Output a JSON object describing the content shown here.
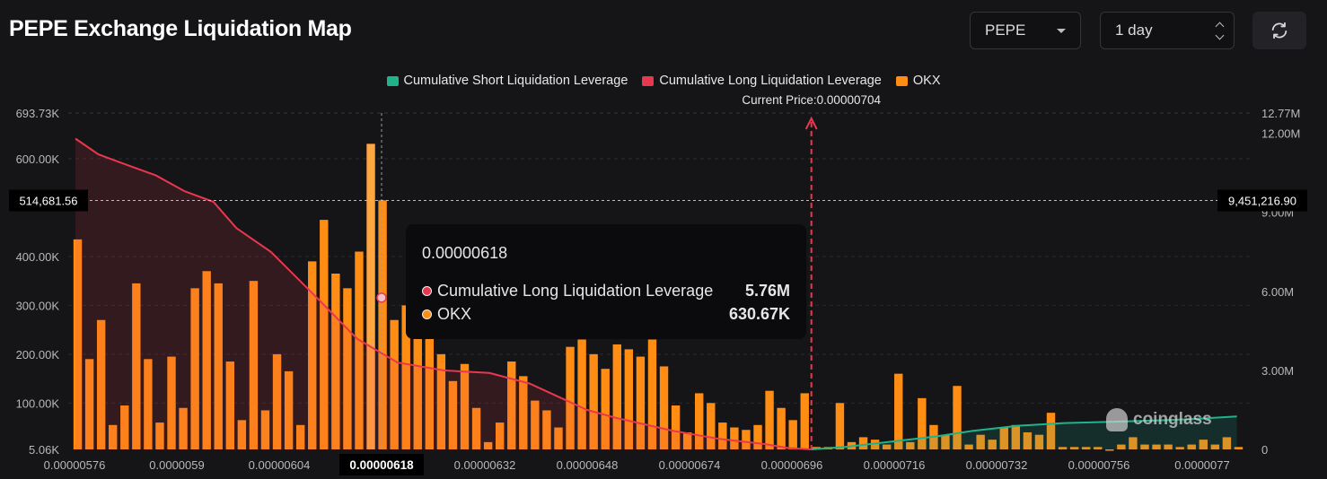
{
  "header": {
    "title": "PEPE Exchange Liquidation Map",
    "coin_select": "PEPE",
    "range_select": "1 day"
  },
  "legend": [
    {
      "label": "Cumulative Short Liquidation Leverage",
      "color": "#1fb38c"
    },
    {
      "label": "Cumulative Long Liquidation Leverage",
      "color": "#e8384f"
    },
    {
      "label": "OKX",
      "color": "#ff8c13"
    }
  ],
  "current_price_label": "Current Price:0.00000704",
  "crosshair": {
    "left_value": "514,681.56",
    "right_value": "9,451,216.90",
    "x_label": "0.00000618"
  },
  "tooltip": {
    "title": "0.00000618",
    "rows": [
      {
        "name": "Cumulative Long Liquidation Leverage",
        "value": "5.76M",
        "color": "#e8384f"
      },
      {
        "name": "OKX",
        "value": "630.67K",
        "color": "#ff8c13"
      }
    ]
  },
  "watermark": "coinglass",
  "chart_data": {
    "type": "bar",
    "x_tick_labels": [
      "0.00000576",
      "0.0000059",
      "0.00000604",
      "0.00000618",
      "0.00000632",
      "0.00000648",
      "0.00000674",
      "0.00000696",
      "0.00000716",
      "0.00000732",
      "0.00000756",
      "0.0000077"
    ],
    "y_left_tick_labels": [
      "693.73K",
      "600.00K",
      "400.00K",
      "300.00K",
      "200.00K",
      "100.00K",
      "5.06K"
    ],
    "y_right_tick_labels": [
      "12.77M",
      "12.00M",
      "9.00M",
      "6.00M",
      "3.00M",
      "0"
    ],
    "y_left_range": [
      5060,
      693730
    ],
    "y_right_range": [
      0,
      12770000
    ],
    "current_price": 7.04e-06,
    "hover_x": 6.18e-06,
    "series": [
      {
        "name": "OKX",
        "axis": "left",
        "color": "#ff8c13",
        "values": [
          435000,
          190000,
          270000,
          55000,
          95000,
          345000,
          190000,
          60000,
          195000,
          90000,
          335000,
          370000,
          345000,
          185000,
          65000,
          350000,
          85000,
          200000,
          165000,
          55000,
          390000,
          475000,
          365000,
          335000,
          410000,
          630670,
          515000,
          270000,
          300000,
          270000,
          295000,
          200000,
          145000,
          180000,
          90000,
          20000,
          60000,
          185000,
          155000,
          105000,
          85000,
          50000,
          215000,
          230000,
          200000,
          170000,
          220000,
          210000,
          195000,
          230000,
          175000,
          95000,
          40000,
          120000,
          100000,
          60000,
          50000,
          45000,
          55000,
          125000,
          90000,
          65000,
          120000,
          10000,
          10000,
          100000,
          20000,
          30000,
          25000,
          15000,
          160000,
          20000,
          110000,
          55000,
          35000,
          135000,
          15000,
          35000,
          25000,
          50000,
          55000,
          40000,
          35000,
          80000,
          10000,
          10000,
          10000,
          10000,
          5000,
          15000,
          30000,
          15000,
          15000,
          15000,
          10000,
          15000,
          25000,
          15000,
          30000,
          10000
        ]
      },
      {
        "name": "Cumulative Long Liquidation Leverage",
        "axis": "right",
        "color": "#e8384f",
        "x": [
          5.76e-06,
          5.8e-06,
          5.85e-06,
          5.9e-06,
          5.95e-06,
          6e-06,
          6.04e-06,
          6.1e-06,
          6.18e-06,
          6.25e-06,
          6.32e-06,
          6.4e-06,
          6.48e-06,
          6.55e-06,
          6.6e-06,
          6.65e-06,
          6.7e-06,
          6.74e-06,
          6.8e-06,
          6.88e-06,
          6.96e-06,
          7e-06,
          7.04e-06
        ],
        "values": [
          11800000,
          11200000,
          10800000,
          10400000,
          9800000,
          9400000,
          8400000,
          7500000,
          5760000,
          4200000,
          3300000,
          3000000,
          2900000,
          2500000,
          2000000,
          1500000,
          1200000,
          1000000,
          700000,
          400000,
          200000,
          50000,
          0
        ]
      },
      {
        "name": "Cumulative Short Liquidation Leverage",
        "axis": "right",
        "color": "#1fb38c",
        "x": [
          7.04e-06,
          7.1e-06,
          7.16e-06,
          7.2e-06,
          7.26e-06,
          7.32e-06,
          7.4e-06,
          7.48e-06,
          7.56e-06,
          7.64e-06,
          7.7e-06,
          7.78e-06
        ],
        "values": [
          0,
          100000,
          250000,
          350000,
          500000,
          700000,
          900000,
          1000000,
          1050000,
          1100000,
          1150000,
          1250000
        ]
      }
    ]
  }
}
